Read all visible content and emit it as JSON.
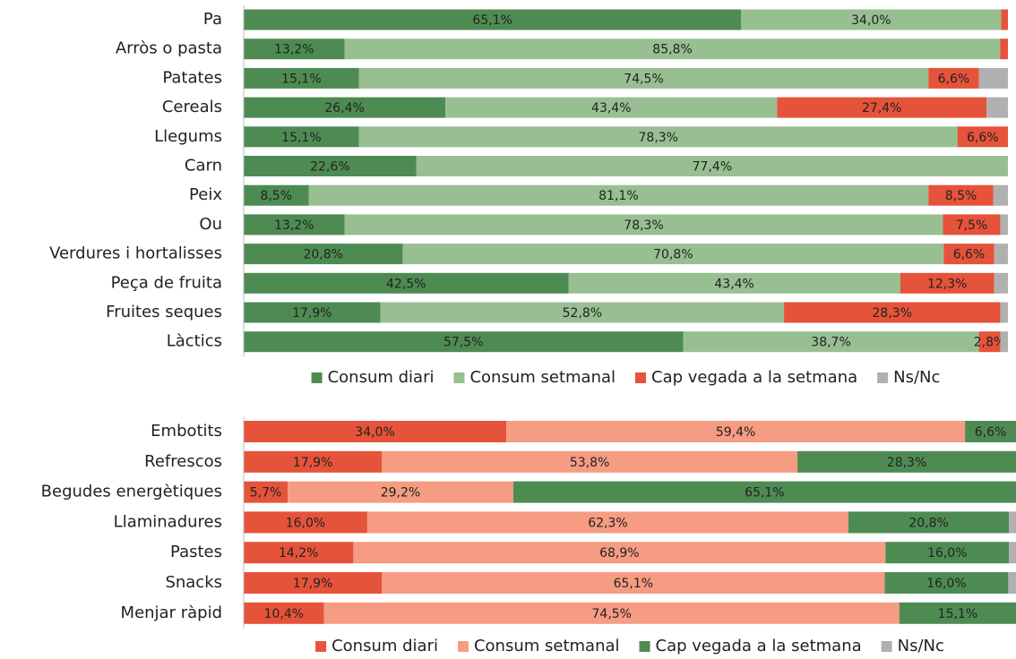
{
  "chart_data": [
    {
      "type": "bar",
      "orientation": "horizontal",
      "stacked": true,
      "xlim": [
        0,
        100
      ],
      "legend": "bottom",
      "categories": [
        "Pa",
        "Arròs o pasta",
        "Patates",
        "Cereals",
        "Llegums",
        "Carn",
        "Peix",
        "Ou",
        "Verdures i hortalisses",
        "Peça de fruita",
        "Fruites seques",
        "Làctics"
      ],
      "series": [
        {
          "name": "Consum diari",
          "color": "#4e8b52",
          "values": [
            65.1,
            13.2,
            15.1,
            26.4,
            15.1,
            22.6,
            8.5,
            13.2,
            20.8,
            42.5,
            17.9,
            57.5
          ],
          "value_labels": [
            "65,1%",
            "13,2%",
            "15,1%",
            "26,4%",
            "15,1%",
            "22,6%",
            "8,5%",
            "13,2%",
            "20,8%",
            "42,5%",
            "17,9%",
            "57,5%"
          ]
        },
        {
          "name": "Consum setmanal",
          "color": "#98bf92",
          "values": [
            34.0,
            85.8,
            74.5,
            43.4,
            78.3,
            77.4,
            81.1,
            78.3,
            70.8,
            43.4,
            52.8,
            38.7
          ],
          "value_labels": [
            "34,0%",
            "85,8%",
            "74,5%",
            "43,4%",
            "78,3%",
            "77,4%",
            "81,1%",
            "78,3%",
            "70,8%",
            "43,4%",
            "52,8%",
            "38,7%"
          ]
        },
        {
          "name": "Cap vegada a la setmana",
          "color": "#e5533a",
          "values": [
            0.9,
            1.0,
            6.6,
            27.4,
            6.6,
            0,
            8.5,
            7.5,
            6.6,
            12.3,
            28.3,
            2.8
          ],
          "value_labels": [
            null,
            null,
            "6,6%",
            "27,4%",
            "6,6%",
            null,
            "8,5%",
            "7,5%",
            "6,6%",
            "12,3%",
            "28,3%",
            "2,8%"
          ]
        },
        {
          "name": "Ns/Nc",
          "color": "#b0b0b0",
          "values": [
            0,
            0,
            3.8,
            2.8,
            0,
            0,
            1.9,
            1.0,
            1.8,
            1.8,
            1.0,
            1.0
          ]
        }
      ]
    },
    {
      "type": "bar",
      "orientation": "horizontal",
      "stacked": true,
      "xlim": [
        0,
        100
      ],
      "legend": "bottom",
      "categories": [
        "Embotits",
        "Refrescos",
        "Begudes energètiques",
        "Llaminadures",
        "Pastes",
        "Snacks",
        "Menjar ràpid"
      ],
      "series": [
        {
          "name": "Consum diari",
          "color": "#e5533a",
          "values": [
            34.0,
            17.9,
            5.7,
            16.0,
            14.2,
            17.9,
            10.4
          ],
          "value_labels": [
            "34,0%",
            "17,9%",
            "5,7%",
            "16,0%",
            "14,2%",
            "17,9%",
            "10,4%"
          ]
        },
        {
          "name": "Consum setmanal",
          "color": "#f59c82",
          "values": [
            59.4,
            53.8,
            29.2,
            62.3,
            68.9,
            65.1,
            74.5
          ],
          "value_labels": [
            "59,4%",
            "53,8%",
            "29,2%",
            "62,3%",
            "68,9%",
            "65,1%",
            "74,5%"
          ]
        },
        {
          "name": "Cap vegada a la setmana",
          "color": "#4e8b52",
          "values": [
            6.6,
            28.3,
            65.1,
            20.8,
            16.0,
            16.0,
            15.1
          ],
          "value_labels": [
            "6,6%",
            "28,3%",
            "65,1%",
            "20,8%",
            "16,0%",
            "16,0%",
            "15,1%"
          ]
        },
        {
          "name": "Ns/Nc",
          "color": "#b0b0b0",
          "values": [
            0,
            0,
            0,
            0.9,
            0.9,
            1.0,
            0
          ]
        }
      ]
    }
  ]
}
